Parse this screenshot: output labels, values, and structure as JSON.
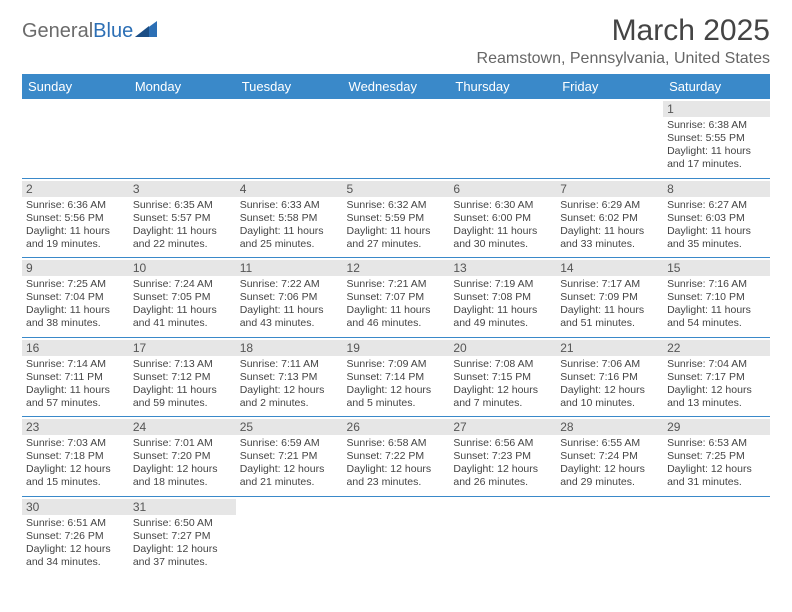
{
  "logo": {
    "part1": "General",
    "part2": "Blue"
  },
  "title": "March 2025",
  "location": "Reamstown, Pennsylvania, United States",
  "colors": {
    "header_bg": "#3a89c9",
    "header_text": "#ffffff",
    "daynum_bg": "#e6e6e6",
    "border": "#3a89c9",
    "logo_gray": "#6b6b6b",
    "logo_blue": "#2c6fb5"
  },
  "day_headers": [
    "Sunday",
    "Monday",
    "Tuesday",
    "Wednesday",
    "Thursday",
    "Friday",
    "Saturday"
  ],
  "weeks": [
    [
      null,
      null,
      null,
      null,
      null,
      null,
      {
        "n": "1",
        "sr": "Sunrise: 6:38 AM",
        "ss": "Sunset: 5:55 PM",
        "dl": "Daylight: 11 hours and 17 minutes."
      }
    ],
    [
      {
        "n": "2",
        "sr": "Sunrise: 6:36 AM",
        "ss": "Sunset: 5:56 PM",
        "dl": "Daylight: 11 hours and 19 minutes."
      },
      {
        "n": "3",
        "sr": "Sunrise: 6:35 AM",
        "ss": "Sunset: 5:57 PM",
        "dl": "Daylight: 11 hours and 22 minutes."
      },
      {
        "n": "4",
        "sr": "Sunrise: 6:33 AM",
        "ss": "Sunset: 5:58 PM",
        "dl": "Daylight: 11 hours and 25 minutes."
      },
      {
        "n": "5",
        "sr": "Sunrise: 6:32 AM",
        "ss": "Sunset: 5:59 PM",
        "dl": "Daylight: 11 hours and 27 minutes."
      },
      {
        "n": "6",
        "sr": "Sunrise: 6:30 AM",
        "ss": "Sunset: 6:00 PM",
        "dl": "Daylight: 11 hours and 30 minutes."
      },
      {
        "n": "7",
        "sr": "Sunrise: 6:29 AM",
        "ss": "Sunset: 6:02 PM",
        "dl": "Daylight: 11 hours and 33 minutes."
      },
      {
        "n": "8",
        "sr": "Sunrise: 6:27 AM",
        "ss": "Sunset: 6:03 PM",
        "dl": "Daylight: 11 hours and 35 minutes."
      }
    ],
    [
      {
        "n": "9",
        "sr": "Sunrise: 7:25 AM",
        "ss": "Sunset: 7:04 PM",
        "dl": "Daylight: 11 hours and 38 minutes."
      },
      {
        "n": "10",
        "sr": "Sunrise: 7:24 AM",
        "ss": "Sunset: 7:05 PM",
        "dl": "Daylight: 11 hours and 41 minutes."
      },
      {
        "n": "11",
        "sr": "Sunrise: 7:22 AM",
        "ss": "Sunset: 7:06 PM",
        "dl": "Daylight: 11 hours and 43 minutes."
      },
      {
        "n": "12",
        "sr": "Sunrise: 7:21 AM",
        "ss": "Sunset: 7:07 PM",
        "dl": "Daylight: 11 hours and 46 minutes."
      },
      {
        "n": "13",
        "sr": "Sunrise: 7:19 AM",
        "ss": "Sunset: 7:08 PM",
        "dl": "Daylight: 11 hours and 49 minutes."
      },
      {
        "n": "14",
        "sr": "Sunrise: 7:17 AM",
        "ss": "Sunset: 7:09 PM",
        "dl": "Daylight: 11 hours and 51 minutes."
      },
      {
        "n": "15",
        "sr": "Sunrise: 7:16 AM",
        "ss": "Sunset: 7:10 PM",
        "dl": "Daylight: 11 hours and 54 minutes."
      }
    ],
    [
      {
        "n": "16",
        "sr": "Sunrise: 7:14 AM",
        "ss": "Sunset: 7:11 PM",
        "dl": "Daylight: 11 hours and 57 minutes."
      },
      {
        "n": "17",
        "sr": "Sunrise: 7:13 AM",
        "ss": "Sunset: 7:12 PM",
        "dl": "Daylight: 11 hours and 59 minutes."
      },
      {
        "n": "18",
        "sr": "Sunrise: 7:11 AM",
        "ss": "Sunset: 7:13 PM",
        "dl": "Daylight: 12 hours and 2 minutes."
      },
      {
        "n": "19",
        "sr": "Sunrise: 7:09 AM",
        "ss": "Sunset: 7:14 PM",
        "dl": "Daylight: 12 hours and 5 minutes."
      },
      {
        "n": "20",
        "sr": "Sunrise: 7:08 AM",
        "ss": "Sunset: 7:15 PM",
        "dl": "Daylight: 12 hours and 7 minutes."
      },
      {
        "n": "21",
        "sr": "Sunrise: 7:06 AM",
        "ss": "Sunset: 7:16 PM",
        "dl": "Daylight: 12 hours and 10 minutes."
      },
      {
        "n": "22",
        "sr": "Sunrise: 7:04 AM",
        "ss": "Sunset: 7:17 PM",
        "dl": "Daylight: 12 hours and 13 minutes."
      }
    ],
    [
      {
        "n": "23",
        "sr": "Sunrise: 7:03 AM",
        "ss": "Sunset: 7:18 PM",
        "dl": "Daylight: 12 hours and 15 minutes."
      },
      {
        "n": "24",
        "sr": "Sunrise: 7:01 AM",
        "ss": "Sunset: 7:20 PM",
        "dl": "Daylight: 12 hours and 18 minutes."
      },
      {
        "n": "25",
        "sr": "Sunrise: 6:59 AM",
        "ss": "Sunset: 7:21 PM",
        "dl": "Daylight: 12 hours and 21 minutes."
      },
      {
        "n": "26",
        "sr": "Sunrise: 6:58 AM",
        "ss": "Sunset: 7:22 PM",
        "dl": "Daylight: 12 hours and 23 minutes."
      },
      {
        "n": "27",
        "sr": "Sunrise: 6:56 AM",
        "ss": "Sunset: 7:23 PM",
        "dl": "Daylight: 12 hours and 26 minutes."
      },
      {
        "n": "28",
        "sr": "Sunrise: 6:55 AM",
        "ss": "Sunset: 7:24 PM",
        "dl": "Daylight: 12 hours and 29 minutes."
      },
      {
        "n": "29",
        "sr": "Sunrise: 6:53 AM",
        "ss": "Sunset: 7:25 PM",
        "dl": "Daylight: 12 hours and 31 minutes."
      }
    ],
    [
      {
        "n": "30",
        "sr": "Sunrise: 6:51 AM",
        "ss": "Sunset: 7:26 PM",
        "dl": "Daylight: 12 hours and 34 minutes."
      },
      {
        "n": "31",
        "sr": "Sunrise: 6:50 AM",
        "ss": "Sunset: 7:27 PM",
        "dl": "Daylight: 12 hours and 37 minutes."
      },
      null,
      null,
      null,
      null,
      null
    ]
  ]
}
